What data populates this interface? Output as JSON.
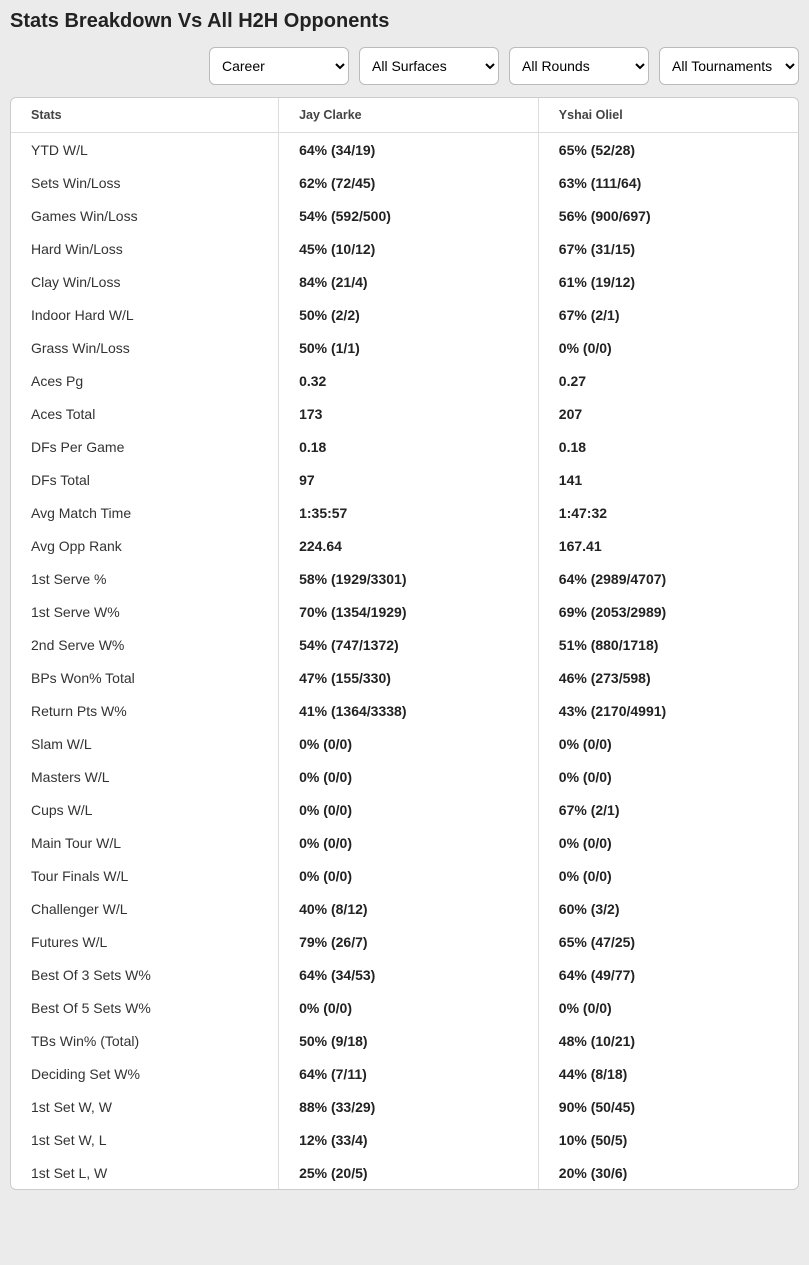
{
  "title": "Stats Breakdown Vs All H2H Opponents",
  "filters": {
    "career": {
      "selected": "Career",
      "options": [
        "Career"
      ]
    },
    "surface": {
      "selected": "All Surfaces",
      "options": [
        "All Surfaces"
      ]
    },
    "round": {
      "selected": "All Rounds",
      "options": [
        "All Rounds"
      ]
    },
    "tournament": {
      "selected": "All Tournaments",
      "options": [
        "All Tournaments"
      ]
    }
  },
  "columns": [
    "Stats",
    "Jay Clarke",
    "Yshai Oliel"
  ],
  "rows": [
    {
      "stat": "YTD W/L",
      "p1": "64% (34/19)",
      "p2": "65% (52/28)"
    },
    {
      "stat": "Sets Win/Loss",
      "p1": "62% (72/45)",
      "p2": "63% (111/64)"
    },
    {
      "stat": "Games Win/Loss",
      "p1": "54% (592/500)",
      "p2": "56% (900/697)"
    },
    {
      "stat": "Hard Win/Loss",
      "p1": "45% (10/12)",
      "p2": "67% (31/15)"
    },
    {
      "stat": "Clay Win/Loss",
      "p1": "84% (21/4)",
      "p2": "61% (19/12)"
    },
    {
      "stat": "Indoor Hard W/L",
      "p1": "50% (2/2)",
      "p2": "67% (2/1)"
    },
    {
      "stat": "Grass Win/Loss",
      "p1": "50% (1/1)",
      "p2": "0% (0/0)"
    },
    {
      "stat": "Aces Pg",
      "p1": "0.32",
      "p2": "0.27"
    },
    {
      "stat": "Aces Total",
      "p1": "173",
      "p2": "207"
    },
    {
      "stat": "DFs Per Game",
      "p1": "0.18",
      "p2": "0.18"
    },
    {
      "stat": "DFs Total",
      "p1": "97",
      "p2": "141"
    },
    {
      "stat": "Avg Match Time",
      "p1": "1:35:57",
      "p2": "1:47:32"
    },
    {
      "stat": "Avg Opp Rank",
      "p1": "224.64",
      "p2": "167.41"
    },
    {
      "stat": "1st Serve %",
      "p1": "58% (1929/3301)",
      "p2": "64% (2989/4707)"
    },
    {
      "stat": "1st Serve W%",
      "p1": "70% (1354/1929)",
      "p2": "69% (2053/2989)"
    },
    {
      "stat": "2nd Serve W%",
      "p1": "54% (747/1372)",
      "p2": "51% (880/1718)"
    },
    {
      "stat": "BPs Won% Total",
      "p1": "47% (155/330)",
      "p2": "46% (273/598)"
    },
    {
      "stat": "Return Pts W%",
      "p1": "41% (1364/3338)",
      "p2": "43% (2170/4991)"
    },
    {
      "stat": "Slam W/L",
      "p1": "0% (0/0)",
      "p2": "0% (0/0)"
    },
    {
      "stat": "Masters W/L",
      "p1": "0% (0/0)",
      "p2": "0% (0/0)"
    },
    {
      "stat": "Cups W/L",
      "p1": "0% (0/0)",
      "p2": "67% (2/1)"
    },
    {
      "stat": "Main Tour W/L",
      "p1": "0% (0/0)",
      "p2": "0% (0/0)"
    },
    {
      "stat": "Tour Finals W/L",
      "p1": "0% (0/0)",
      "p2": "0% (0/0)"
    },
    {
      "stat": "Challenger W/L",
      "p1": "40% (8/12)",
      "p2": "60% (3/2)"
    },
    {
      "stat": "Futures W/L",
      "p1": "79% (26/7)",
      "p2": "65% (47/25)"
    },
    {
      "stat": "Best Of 3 Sets W%",
      "p1": "64% (34/53)",
      "p2": "64% (49/77)"
    },
    {
      "stat": "Best Of 5 Sets W%",
      "p1": "0% (0/0)",
      "p2": "0% (0/0)"
    },
    {
      "stat": "TBs Win% (Total)",
      "p1": "50% (9/18)",
      "p2": "48% (10/21)"
    },
    {
      "stat": "Deciding Set W%",
      "p1": "64% (7/11)",
      "p2": "44% (8/18)"
    },
    {
      "stat": "1st Set W, W",
      "p1": "88% (33/29)",
      "p2": "90% (50/45)"
    },
    {
      "stat": "1st Set W, L",
      "p1": "12% (33/4)",
      "p2": "10% (50/5)"
    },
    {
      "stat": "1st Set L, W",
      "p1": "25% (20/5)",
      "p2": "20% (30/6)"
    }
  ]
}
